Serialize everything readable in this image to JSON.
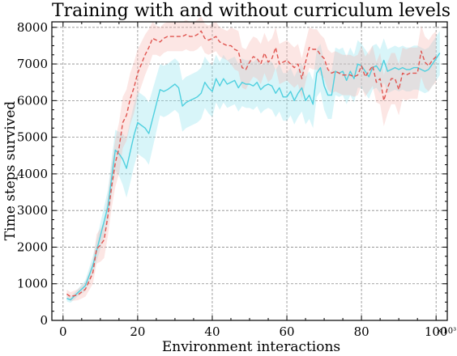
{
  "chart_data": {
    "type": "line",
    "title": "Training with and without curriculum levels",
    "xlabel": "Environment interactions",
    "ylabel": "Time steps survived",
    "x_multiplier_label": "×10³",
    "xlim": [
      -3,
      103
    ],
    "ylim": [
      0,
      8150
    ],
    "xticks": [
      0,
      20,
      40,
      60,
      80,
      100
    ],
    "yticks": [
      0,
      1000,
      2000,
      3000,
      4000,
      5000,
      6000,
      7000,
      8000
    ],
    "grid": true,
    "colors": {
      "cyan": "#4fd0df",
      "red": "#e0544f"
    },
    "series": [
      {
        "style": "solid",
        "color": "#4fd0df",
        "band_color": "#8fe3ee",
        "points": [
          [
            1,
            600
          ],
          [
            2,
            560
          ],
          [
            4,
            760
          ],
          [
            6,
            950
          ],
          [
            8,
            1500
          ],
          [
            10,
            2300
          ],
          [
            12,
            3100
          ],
          [
            14,
            4650
          ],
          [
            15,
            4550
          ],
          [
            16,
            4400
          ],
          [
            17,
            4150
          ],
          [
            18,
            4600
          ],
          [
            19,
            5050
          ],
          [
            20,
            5400
          ],
          [
            22,
            5250
          ],
          [
            23,
            5100
          ],
          [
            24,
            5500
          ],
          [
            26,
            6300
          ],
          [
            27,
            6250
          ],
          [
            28,
            6300
          ],
          [
            30,
            6450
          ],
          [
            31,
            6350
          ],
          [
            32,
            5850
          ],
          [
            33,
            5950
          ],
          [
            34,
            6000
          ],
          [
            35,
            6050
          ],
          [
            36,
            6100
          ],
          [
            37,
            6200
          ],
          [
            38,
            6500
          ],
          [
            39,
            6350
          ],
          [
            40,
            6250
          ],
          [
            41,
            6600
          ],
          [
            42,
            6400
          ],
          [
            43,
            6600
          ],
          [
            44,
            6450
          ],
          [
            45,
            6500
          ],
          [
            46,
            6550
          ],
          [
            47,
            6350
          ],
          [
            48,
            6500
          ],
          [
            49,
            6450
          ],
          [
            50,
            6450
          ],
          [
            51,
            6400
          ],
          [
            52,
            6500
          ],
          [
            53,
            6300
          ],
          [
            54,
            6400
          ],
          [
            55,
            6450
          ],
          [
            56,
            6400
          ],
          [
            57,
            6200
          ],
          [
            58,
            6350
          ],
          [
            59,
            6100
          ],
          [
            60,
            6100
          ],
          [
            61,
            6250
          ],
          [
            62,
            6000
          ],
          [
            63,
            6200
          ],
          [
            64,
            6350
          ],
          [
            65,
            6000
          ],
          [
            66,
            6150
          ],
          [
            67,
            5900
          ],
          [
            68,
            6750
          ],
          [
            69,
            6900
          ],
          [
            70,
            6400
          ],
          [
            71,
            6150
          ],
          [
            72,
            6150
          ],
          [
            73,
            6800
          ],
          [
            74,
            6750
          ],
          [
            75,
            6800
          ],
          [
            76,
            6550
          ],
          [
            77,
            6800
          ],
          [
            78,
            6600
          ],
          [
            79,
            7000
          ],
          [
            80,
            6950
          ],
          [
            81,
            6800
          ],
          [
            82,
            6650
          ],
          [
            83,
            6900
          ],
          [
            84,
            6950
          ],
          [
            85,
            6800
          ],
          [
            86,
            7100
          ],
          [
            87,
            6800
          ],
          [
            88,
            6850
          ],
          [
            89,
            6900
          ],
          [
            90,
            6850
          ],
          [
            91,
            6900
          ],
          [
            92,
            6850
          ],
          [
            93,
            6850
          ],
          [
            94,
            6900
          ],
          [
            95,
            6900
          ],
          [
            96,
            6850
          ],
          [
            97,
            6800
          ],
          [
            98,
            6850
          ],
          [
            99,
            7000
          ],
          [
            100,
            7150
          ],
          [
            101,
            7300
          ]
        ],
        "band_half_width": [
          80,
          80,
          100,
          150,
          250,
          350,
          450,
          550,
          600,
          700,
          800,
          850,
          850,
          850,
          850,
          850,
          800,
          700,
          700,
          700,
          700,
          700,
          700,
          700,
          700,
          700,
          700,
          700,
          700,
          700,
          700,
          650,
          650,
          650,
          650,
          650,
          650,
          650,
          650,
          650,
          650,
          650,
          650,
          650,
          650,
          650,
          650,
          650,
          650,
          650,
          650,
          650,
          650,
          650,
          650,
          650,
          650,
          650,
          650,
          650,
          650,
          650,
          650,
          650,
          650,
          650,
          650,
          650,
          650,
          650,
          600,
          600,
          600,
          600,
          600,
          600,
          600,
          600,
          600,
          600,
          600,
          600,
          600,
          600,
          600,
          600,
          600,
          600,
          600,
          600,
          600,
          600
        ]
      },
      {
        "style": "dashed",
        "color": "#e0544f",
        "band_color": "#f7b6b1",
        "points": [
          [
            1,
            720
          ],
          [
            2,
            650
          ],
          [
            4,
            700
          ],
          [
            6,
            850
          ],
          [
            8,
            1300
          ],
          [
            9,
            1950
          ],
          [
            10,
            2050
          ],
          [
            11,
            2200
          ],
          [
            12,
            2850
          ],
          [
            13,
            3650
          ],
          [
            14,
            4300
          ],
          [
            15,
            4700
          ],
          [
            16,
            5400
          ],
          [
            17,
            5600
          ],
          [
            18,
            6050
          ],
          [
            19,
            6350
          ],
          [
            20,
            6750
          ],
          [
            21,
            7000
          ],
          [
            22,
            7250
          ],
          [
            23,
            7450
          ],
          [
            24,
            7700
          ],
          [
            25,
            7650
          ],
          [
            26,
            7600
          ],
          [
            27,
            7700
          ],
          [
            28,
            7750
          ],
          [
            29,
            7750
          ],
          [
            30,
            7750
          ],
          [
            32,
            7750
          ],
          [
            33,
            7800
          ],
          [
            34,
            7750
          ],
          [
            35,
            7750
          ],
          [
            36,
            7800
          ],
          [
            37,
            7900
          ],
          [
            38,
            7700
          ],
          [
            39,
            7650
          ],
          [
            40,
            7700
          ],
          [
            41,
            7750
          ],
          [
            42,
            7600
          ],
          [
            43,
            7550
          ],
          [
            44,
            7500
          ],
          [
            45,
            7500
          ],
          [
            46,
            7400
          ],
          [
            47,
            7350
          ],
          [
            48,
            6900
          ],
          [
            49,
            6850
          ],
          [
            50,
            7050
          ],
          [
            51,
            7200
          ],
          [
            52,
            7150
          ],
          [
            53,
            7000
          ],
          [
            54,
            7300
          ],
          [
            55,
            7050
          ],
          [
            56,
            7150
          ],
          [
            57,
            7450
          ],
          [
            58,
            7000
          ],
          [
            59,
            7050
          ],
          [
            60,
            7100
          ],
          [
            61,
            7000
          ],
          [
            62,
            6900
          ],
          [
            63,
            7000
          ],
          [
            64,
            6600
          ],
          [
            65,
            7050
          ],
          [
            66,
            7450
          ],
          [
            67,
            7400
          ],
          [
            68,
            7400
          ],
          [
            69,
            7250
          ],
          [
            70,
            7150
          ],
          [
            71,
            6850
          ],
          [
            72,
            6750
          ],
          [
            73,
            6800
          ],
          [
            74,
            6750
          ],
          [
            75,
            6700
          ],
          [
            76,
            6700
          ],
          [
            77,
            6700
          ],
          [
            78,
            6650
          ],
          [
            79,
            6700
          ],
          [
            80,
            6950
          ],
          [
            81,
            6650
          ],
          [
            82,
            6800
          ],
          [
            83,
            6950
          ],
          [
            84,
            6500
          ],
          [
            85,
            6600
          ],
          [
            86,
            6000
          ],
          [
            87,
            6350
          ],
          [
            88,
            6600
          ],
          [
            89,
            6600
          ],
          [
            90,
            6300
          ],
          [
            91,
            6750
          ],
          [
            92,
            6700
          ],
          [
            93,
            6750
          ],
          [
            94,
            6750
          ],
          [
            95,
            6750
          ],
          [
            96,
            7350
          ],
          [
            97,
            7050
          ],
          [
            98,
            6950
          ],
          [
            99,
            7100
          ],
          [
            100,
            7200
          ]
        ],
        "band_half_width": [
          120,
          120,
          150,
          200,
          300,
          400,
          450,
          500,
          550,
          600,
          650,
          700,
          700,
          700,
          700,
          700,
          650,
          600,
          550,
          500,
          450,
          400,
          400,
          400,
          400,
          400,
          400,
          400,
          400,
          400,
          400,
          400,
          400,
          400,
          400,
          400,
          400,
          400,
          400,
          400,
          500,
          550,
          550,
          550,
          550,
          550,
          550,
          550,
          550,
          550,
          550,
          550,
          550,
          550,
          550,
          550,
          550,
          550,
          550,
          550,
          550,
          550,
          550,
          550,
          550,
          550,
          550,
          550,
          550,
          550,
          550,
          550,
          550,
          550,
          550,
          550,
          550,
          550,
          550,
          550,
          700,
          700,
          700,
          700,
          700,
          700,
          700,
          700,
          700,
          700,
          700,
          700,
          700,
          700,
          700,
          700
        ]
      }
    ]
  }
}
